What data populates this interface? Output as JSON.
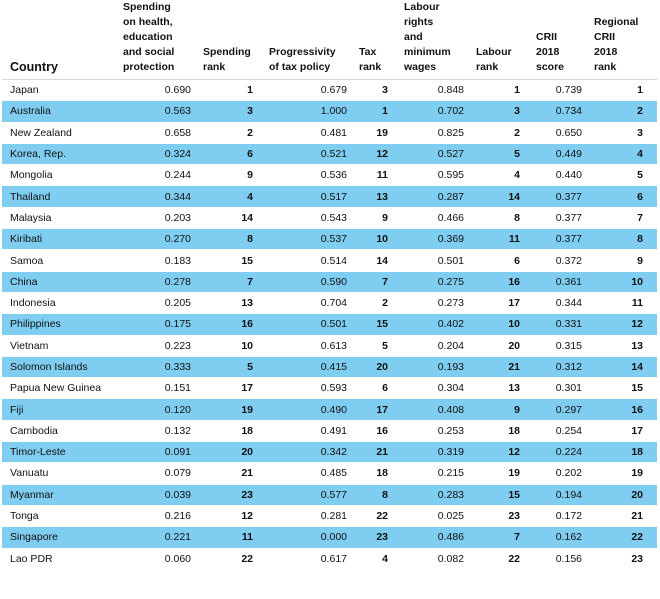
{
  "headers": {
    "country": "Country",
    "spending": "Spending\non health,\neducation\nand social\nprotection",
    "spending_rank": "Spending\nrank",
    "progressivity": "Progressivity\nof tax policy",
    "tax_rank": "Tax\nrank",
    "labour": "Labour\nrights\nand\nminimum\nwages",
    "labour_rank": "Labour\nrank",
    "crii_score": "CRII\n2018\nscore",
    "regional_rank": "Regional\nCRII\n2018\nrank"
  },
  "rows": [
    {
      "country": "Japan",
      "spending": "0.690",
      "spending_rank": "1",
      "progressivity": "0.679",
      "tax_rank": "3",
      "labour": "0.848",
      "labour_rank": "1",
      "crii_score": "0.739",
      "regional_rank": "1"
    },
    {
      "country": "Australia",
      "spending": "0.563",
      "spending_rank": "3",
      "progressivity": "1.000",
      "tax_rank": "1",
      "labour": "0.702",
      "labour_rank": "3",
      "crii_score": "0.734",
      "regional_rank": "2"
    },
    {
      "country": "New Zealand",
      "spending": "0.658",
      "spending_rank": "2",
      "progressivity": "0.481",
      "tax_rank": "19",
      "labour": "0.825",
      "labour_rank": "2",
      "crii_score": "0.650",
      "regional_rank": "3"
    },
    {
      "country": "Korea, Rep.",
      "spending": "0.324",
      "spending_rank": "6",
      "progressivity": "0.521",
      "tax_rank": "12",
      "labour": "0.527",
      "labour_rank": "5",
      "crii_score": "0.449",
      "regional_rank": "4"
    },
    {
      "country": "Mongolia",
      "spending": "0.244",
      "spending_rank": "9",
      "progressivity": "0.536",
      "tax_rank": "11",
      "labour": "0.595",
      "labour_rank": "4",
      "crii_score": "0.440",
      "regional_rank": "5"
    },
    {
      "country": "Thailand",
      "spending": "0.344",
      "spending_rank": "4",
      "progressivity": "0.517",
      "tax_rank": "13",
      "labour": "0.287",
      "labour_rank": "14",
      "crii_score": "0.377",
      "regional_rank": "6"
    },
    {
      "country": "Malaysia",
      "spending": "0.203",
      "spending_rank": "14",
      "progressivity": "0.543",
      "tax_rank": "9",
      "labour": "0.466",
      "labour_rank": "8",
      "crii_score": "0.377",
      "regional_rank": "7"
    },
    {
      "country": "Kiribati",
      "spending": "0.270",
      "spending_rank": "8",
      "progressivity": "0.537",
      "tax_rank": "10",
      "labour": "0.369",
      "labour_rank": "11",
      "crii_score": "0.377",
      "regional_rank": "8"
    },
    {
      "country": "Samoa",
      "spending": "0.183",
      "spending_rank": "15",
      "progressivity": "0.514",
      "tax_rank": "14",
      "labour": "0.501",
      "labour_rank": "6",
      "crii_score": "0.372",
      "regional_rank": "9"
    },
    {
      "country": "China",
      "spending": "0.278",
      "spending_rank": "7",
      "progressivity": "0.590",
      "tax_rank": "7",
      "labour": "0.275",
      "labour_rank": "16",
      "crii_score": "0.361",
      "regional_rank": "10"
    },
    {
      "country": "Indonesia",
      "spending": "0.205",
      "spending_rank": "13",
      "progressivity": "0.704",
      "tax_rank": "2",
      "labour": "0.273",
      "labour_rank": "17",
      "crii_score": "0.344",
      "regional_rank": "11"
    },
    {
      "country": "Philippines",
      "spending": "0.175",
      "spending_rank": "16",
      "progressivity": "0.501",
      "tax_rank": "15",
      "labour": "0.402",
      "labour_rank": "10",
      "crii_score": "0.331",
      "regional_rank": "12"
    },
    {
      "country": "Vietnam",
      "spending": "0.223",
      "spending_rank": "10",
      "progressivity": "0.613",
      "tax_rank": "5",
      "labour": "0.204",
      "labour_rank": "20",
      "crii_score": "0.315",
      "regional_rank": "13"
    },
    {
      "country": "Solomon Islands",
      "spending": "0.333",
      "spending_rank": "5",
      "progressivity": "0.415",
      "tax_rank": "20",
      "labour": "0.193",
      "labour_rank": "21",
      "crii_score": "0.312",
      "regional_rank": "14"
    },
    {
      "country": "Papua New Guinea",
      "spending": "0.151",
      "spending_rank": "17",
      "progressivity": "0.593",
      "tax_rank": "6",
      "labour": "0.304",
      "labour_rank": "13",
      "crii_score": "0.301",
      "regional_rank": "15"
    },
    {
      "country": "Fiji",
      "spending": "0.120",
      "spending_rank": "19",
      "progressivity": "0.490",
      "tax_rank": "17",
      "labour": "0.408",
      "labour_rank": "9",
      "crii_score": "0.297",
      "regional_rank": "16"
    },
    {
      "country": "Cambodia",
      "spending": "0.132",
      "spending_rank": "18",
      "progressivity": "0.491",
      "tax_rank": "16",
      "labour": "0.253",
      "labour_rank": "18",
      "crii_score": "0.254",
      "regional_rank": "17"
    },
    {
      "country": "Timor-Leste",
      "spending": "0.091",
      "spending_rank": "20",
      "progressivity": "0.342",
      "tax_rank": "21",
      "labour": "0.319",
      "labour_rank": "12",
      "crii_score": "0.224",
      "regional_rank": "18"
    },
    {
      "country": "Vanuatu",
      "spending": "0.079",
      "spending_rank": "21",
      "progressivity": "0.485",
      "tax_rank": "18",
      "labour": "0.215",
      "labour_rank": "19",
      "crii_score": "0.202",
      "regional_rank": "19"
    },
    {
      "country": "Myanmar",
      "spending": "0.039",
      "spending_rank": "23",
      "progressivity": "0.577",
      "tax_rank": "8",
      "labour": "0.283",
      "labour_rank": "15",
      "crii_score": "0.194",
      "regional_rank": "20"
    },
    {
      "country": "Tonga",
      "spending": "0.216",
      "spending_rank": "12",
      "progressivity": "0.281",
      "tax_rank": "22",
      "labour": "0.025",
      "labour_rank": "23",
      "crii_score": "0.172",
      "regional_rank": "21"
    },
    {
      "country": "Singapore",
      "spending": "0.221",
      "spending_rank": "11",
      "progressivity": "0.000",
      "tax_rank": "23",
      "labour": "0.486",
      "labour_rank": "7",
      "crii_score": "0.162",
      "regional_rank": "22"
    },
    {
      "country": "Lao PDR",
      "spending": "0.060",
      "spending_rank": "22",
      "progressivity": "0.617",
      "tax_rank": "4",
      "labour": "0.082",
      "labour_rank": "22",
      "crii_score": "0.156",
      "regional_rank": "23"
    }
  ],
  "colors": {
    "stripe": "#7fcdf0",
    "background": "#ffffff"
  }
}
